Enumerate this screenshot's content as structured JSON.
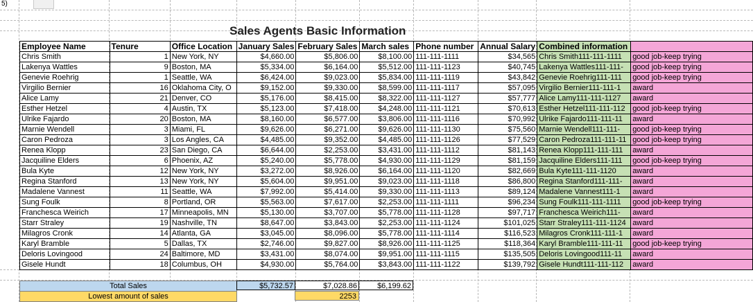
{
  "cell_ref": "5)",
  "title": "Sales Agents Basic Information",
  "headers": [
    "Employee Name",
    "Tenure",
    "Office Location",
    "January Sales",
    "February Sales",
    "March sales",
    "Phone number",
    "Annual Salary",
    "Combined information",
    ""
  ],
  "rows": [
    [
      "Chris Smith",
      "1",
      "New York, NY",
      "$4,660.00",
      "$5,806.00",
      "$8,100.00",
      "111-111-1111",
      "$34,565",
      "Chris Smith111-111-1111",
      "good job-keep trying"
    ],
    [
      "Lakenya Wattles",
      "9",
      "Boston, MA",
      "$5,334.00",
      "$6,164.00",
      "$5,512.00",
      "111-111-1123",
      "$40,745",
      "Lakenya Wattles111-111-",
      "good job-keep trying"
    ],
    [
      "Genevie Roehrig",
      "1",
      "Seattle, WA",
      "$6,424.00",
      "$9,023.00",
      "$5,834.00",
      "111-111-1119",
      "$43,842",
      "Genevie Roehrig111-111",
      "good job-keep trying"
    ],
    [
      "Virgilio Bernier",
      "16",
      "Oklahoma City, O",
      "$9,152.00",
      "$9,330.00",
      "$8,599.00",
      "111-111-1117",
      "$57,095",
      "Virgilio Bernier111-111-1",
      "award"
    ],
    [
      "Alice Lamy",
      "21",
      "Denver, CO",
      "$5,176.00",
      "$8,415.00",
      "$8,322.00",
      "111-111-1127",
      "$57,777",
      "Alice Lamy111-111-1127",
      "award"
    ],
    [
      "Esther Hetzel",
      "4",
      "Austin, TX",
      "$5,123.00",
      "$7,418.00",
      "$4,248.00",
      "111-111-1121",
      "$70,613",
      "Esther Hetzel111-111-112",
      "good job-keep trying"
    ],
    [
      "Ulrike Fajardo",
      "20",
      "Boston, MA",
      "$8,160.00",
      "$6,577.00",
      "$3,806.00",
      "111-111-1116",
      "$70,992",
      "Ulrike Fajardo111-111-11",
      "award"
    ],
    [
      "Marnie Wendell",
      "3",
      "Miami, FL",
      "$9,626.00",
      "$6,271.00",
      "$9,626.00",
      "111-111-1130",
      "$75,560",
      "Marnie Wendell111-111-",
      "good job-keep trying"
    ],
    [
      "Caron Pedroza",
      "3",
      "Los Angles, CA",
      "$4,485.00",
      "$9,352.00",
      "$4,485.00",
      "111-111-1126",
      "$77,529",
      "Caron Pedroza111-111-11",
      "good job-keep trying"
    ],
    [
      "Renea Klopp",
      "23",
      "San Diego, CA",
      "$6,644.00",
      "$2,253.00",
      "$3,431.00",
      "111-111-1112",
      "$81,143",
      "Renea Klopp111-111-111",
      "award"
    ],
    [
      "Jacquiline Elders",
      "6",
      "Phoenix, AZ",
      "$5,240.00",
      "$5,778.00",
      "$4,930.00",
      "111-111-1129",
      "$81,159",
      "Jacquiline Elders111-111",
      "good job-keep trying"
    ],
    [
      "Bula Kyte",
      "12",
      "New York, NY",
      "$3,272.00",
      "$8,926.00",
      "$6,164.00",
      "111-111-1120",
      "$82,669",
      "Bula Kyte111-111-1120",
      "award"
    ],
    [
      "Regina Stanford",
      "13",
      "New York, NY",
      "$5,604.00",
      "$9,951.00",
      "$9,023.00",
      "111-111-1118",
      "$86,800",
      "Regina Stanford111-111-",
      "award"
    ],
    [
      "Madalene Vannest",
      "11",
      "Seattle, WA",
      "$7,992.00",
      "$5,414.00",
      "$9,330.00",
      "111-111-1113",
      "$89,124",
      "Madalene Vannest111-1",
      "award"
    ],
    [
      "Sung Foulk",
      "8",
      "Portland, OR",
      "$5,563.00",
      "$7,617.00",
      "$2,253.00",
      "111-111-1111",
      "$96,234",
      "Sung Foulk111-111-1111",
      "good job-keep trying"
    ],
    [
      "Franchesca Weirich",
      "17",
      "Minneapolis, MN",
      "$5,130.00",
      "$3,707.00",
      "$5,778.00",
      "111-111-1128",
      "$97,717",
      "Franchesca Weirich111-",
      "award"
    ],
    [
      "Starr Straley",
      "19",
      "Nashville, TN",
      "$8,647.00",
      "$3,843.00",
      "$2,253.00",
      "111-111-1124",
      "$101,025",
      "Starr Straley111-111-1124",
      "award"
    ],
    [
      "Milagros Cronk",
      "14",
      "Atlanta, GA",
      "$3,045.00",
      "$8,096.00",
      "$5,778.00",
      "111-111-1114",
      "$116,523",
      "Milagros Cronk111-111-1",
      "award"
    ],
    [
      "Karyl Bramble",
      "5",
      "Dallas, TX",
      "$2,746.00",
      "$9,827.00",
      "$8,926.00",
      "111-111-1125",
      "$118,364",
      "Karyl Bramble111-111-11",
      "good job-keep trying"
    ],
    [
      "Deloris Lovingood",
      "24",
      "Baltimore, MD",
      "$3,431.00",
      "$8,074.00",
      "$9,951.00",
      "111-111-1115",
      "$135,505",
      "Deloris Lovingood111-11",
      "award"
    ],
    [
      "Gisele Hundt",
      "18",
      "Columbus, OH",
      "$4,930.00",
      "$5,764.00",
      "$3,843.00",
      "111-111-1122",
      "$139,792",
      "Gisele Hundt111-111-112",
      "award"
    ]
  ],
  "totals": {
    "label": "Total Sales",
    "january": "$5,732.57",
    "february": "$7,028.86",
    "march": "$6,199.62"
  },
  "lowest": {
    "label": "Lowest amount of sales",
    "value": "2253"
  },
  "colors": {
    "combined_fill": "#c6e0b4",
    "status_fill": "#f4a6d7",
    "totals_fill": "#bdd7ee",
    "lowest_fill": "#ffd966"
  }
}
